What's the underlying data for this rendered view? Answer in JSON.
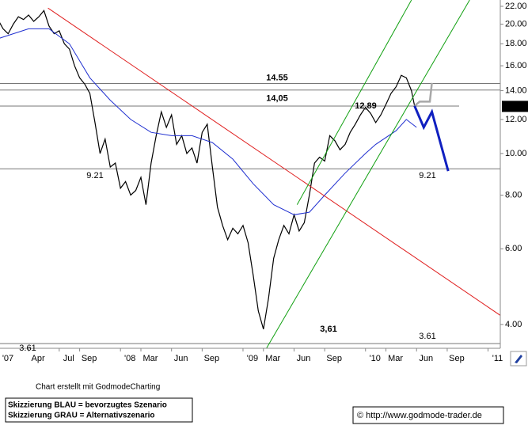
{
  "chart_data": {
    "type": "line",
    "log_scale": true,
    "grid": false,
    "xlim": [
      0.2,
      49.2
    ],
    "ylim": [
      3.52,
      22.76
    ],
    "yticks": [
      {
        "value": 4,
        "label": "4.00"
      },
      {
        "value": 6,
        "label": "6.00"
      },
      {
        "value": 8,
        "label": "8.00"
      },
      {
        "value": 10,
        "label": "10.00"
      },
      {
        "value": 12,
        "label": "12.00"
      },
      {
        "value": 14,
        "label": "14.00"
      },
      {
        "value": 16,
        "label": "16.00"
      },
      {
        "value": 18,
        "label": "18.00"
      },
      {
        "value": 20,
        "label": "20.00"
      },
      {
        "value": 22,
        "label": "22.00"
      }
    ],
    "xticks": [
      {
        "value": 0,
        "label": "'07"
      },
      {
        "value": 3,
        "label": "Apr"
      },
      {
        "value": 6,
        "label": "Jul"
      },
      {
        "value": 8,
        "label": "Sep"
      },
      {
        "value": 12,
        "label": "'08"
      },
      {
        "value": 14,
        "label": "Mar"
      },
      {
        "value": 17,
        "label": "Jun"
      },
      {
        "value": 20,
        "label": "Sep"
      },
      {
        "value": 24,
        "label": "'09"
      },
      {
        "value": 26,
        "label": "Mar"
      },
      {
        "value": 29,
        "label": "Jun"
      },
      {
        "value": 32,
        "label": "Sep"
      },
      {
        "value": 36,
        "label": "'10"
      },
      {
        "value": 38,
        "label": "Mar"
      },
      {
        "value": 41,
        "label": "Jun"
      },
      {
        "value": 44,
        "label": "Sep"
      },
      {
        "value": 48,
        "label": "'11"
      }
    ],
    "levels": [
      {
        "value": 14.55,
        "labels": [
          "14.55"
        ]
      },
      {
        "value": 14.05,
        "labels": [
          "14,05"
        ]
      },
      {
        "value": 12.89,
        "labels": [
          "12,89"
        ]
      },
      {
        "value": 9.21,
        "labels": [
          "9.21",
          "9.21"
        ]
      },
      {
        "value": 3.61,
        "labels": [
          "3.61",
          "3,61",
          "3.61"
        ]
      }
    ],
    "last_price": 12.87,
    "series": [
      {
        "color": "#000000",
        "line_width": 1.2,
        "x": [
          0,
          0.5,
          1,
          1.5,
          2,
          2.5,
          3,
          3.5,
          4,
          4.5,
          5,
          5.5,
          6,
          6.5,
          7,
          7.5,
          8,
          8.5,
          9,
          9.5,
          10,
          10.5,
          11,
          11.5,
          12,
          12.5,
          13,
          13.5,
          14,
          14.5,
          15,
          15.5,
          16,
          16.5,
          17,
          17.5,
          18,
          18.5,
          19,
          19.5,
          20,
          20.5,
          21,
          21.5,
          22,
          22.5,
          23,
          23.5,
          24,
          24.5,
          25,
          25.5,
          26,
          26.5,
          27,
          27.5,
          28,
          28.5,
          29,
          29.5,
          30,
          30.5,
          31,
          31.5,
          32,
          32.5,
          33,
          33.5,
          34,
          34.5,
          35,
          35.5,
          36,
          36.5,
          37,
          37.5,
          38,
          38.5,
          39,
          39.5,
          40,
          40.5,
          40.8
        ],
        "values": [
          20.5,
          19.5,
          19,
          20,
          20.8,
          20.5,
          21,
          20.3,
          20.8,
          21.5,
          19.8,
          19,
          19.3,
          18,
          17.5,
          16,
          15,
          14.5,
          13.8,
          11.8,
          10,
          10.8,
          9.3,
          9.5,
          8.3,
          8.6,
          8,
          8.2,
          8.8,
          7.6,
          9.5,
          11,
          12.5,
          11.5,
          12.3,
          10.5,
          11,
          10,
          10.3,
          9.5,
          11.2,
          11.7,
          9.3,
          7.5,
          6.8,
          6.3,
          6.7,
          6.5,
          6.8,
          6.2,
          5.2,
          4.3,
          3.9,
          4.6,
          5.7,
          6.3,
          6.8,
          6.5,
          7.2,
          6.6,
          6.9,
          8,
          9.5,
          9.8,
          9.6,
          11,
          10.7,
          10.2,
          10.5,
          11.2,
          11.7,
          12.3,
          12.8,
          12.4,
          11.8,
          12.3,
          13,
          13.8,
          14.3,
          15.2,
          15,
          14,
          12.9
        ]
      },
      {
        "color": "#1f2fd0",
        "line_width": 1,
        "x": [
          0,
          3,
          5,
          7,
          9,
          11,
          13,
          15,
          17,
          19,
          21,
          23,
          25,
          27,
          29,
          30.5,
          32,
          34,
          36,
          37,
          39,
          40,
          41
        ],
        "values": [
          18.5,
          19.5,
          19.5,
          18,
          15,
          13.3,
          12,
          11.2,
          11,
          11,
          10.6,
          9.7,
          8.5,
          7.6,
          7.2,
          7.3,
          8,
          9,
          10,
          10.5,
          11.3,
          12,
          11.5
        ]
      },
      {
        "color": "#e02020",
        "line_width": 1,
        "x": [
          4.9,
          49.2
        ],
        "values": [
          21.8,
          4.2
        ]
      },
      {
        "color": "#11a011",
        "line_width": 1,
        "x": [
          26.3,
          46.2
        ],
        "values": [
          3.52,
          22.76
        ]
      },
      {
        "color": "#11a011",
        "line_width": 1,
        "x": [
          29.3,
          40.5
        ],
        "values": [
          7.6,
          22.76
        ]
      },
      {
        "color": "#a8a8a8",
        "line_width": 2.5,
        "x": [
          40.8,
          41.3,
          42.3,
          42.5
        ],
        "values": [
          12.9,
          13.2,
          13.2,
          14.6
        ]
      },
      {
        "color": "#1020c0",
        "line_width": 3,
        "x": [
          40.8,
          41.7,
          42.5,
          44.1
        ],
        "values": [
          12.9,
          11.5,
          12.5,
          9.1
        ]
      }
    ],
    "footer": {
      "credit": "Chart erstellt mit GodmodeCharting",
      "legend": [
        "Skizzierung BLAU = bevorzugtes Szenario",
        "Skizzierung GRAU = Alternativszenario"
      ],
      "copyright": "© http://www.godmode-trader.de"
    }
  }
}
